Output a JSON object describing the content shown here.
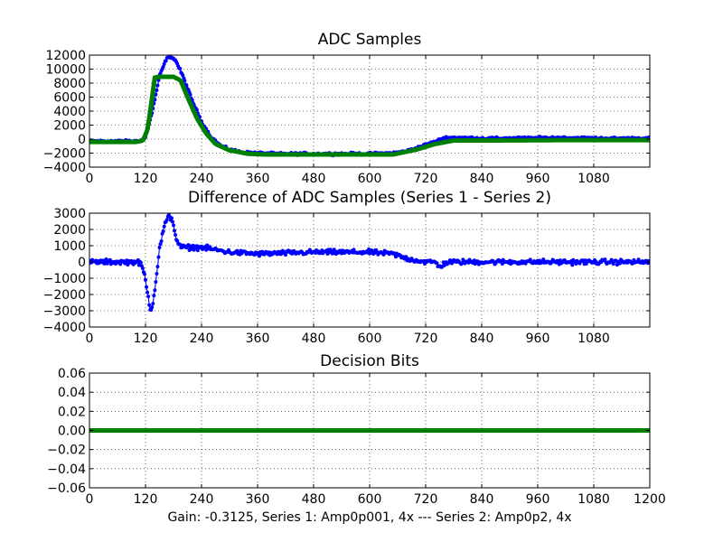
{
  "colors": {
    "series1": "#0000ff",
    "series2": "#008000",
    "axes": "#000000",
    "background": "#ffffff"
  },
  "footer": "Gain: -0.3125, Series 1: Amp0p001, 4x --- Series 2: Amp0p2, 4x",
  "chart_data": [
    {
      "type": "line",
      "title": "ADC Samples",
      "xlabel": "",
      "ylabel": "",
      "xlim": [
        0,
        1200
      ],
      "ylim": [
        -4000,
        12000
      ],
      "xticks": [
        0,
        120,
        240,
        360,
        480,
        600,
        720,
        840,
        960,
        1080
      ],
      "xtick_labels": [
        "0",
        "120",
        "240",
        "360",
        "480",
        "600",
        "720",
        "840",
        "960",
        "1080"
      ],
      "yticks": [
        -4000,
        -2000,
        0,
        2000,
        4000,
        6000,
        8000,
        10000,
        12000
      ],
      "ytick_labels": [
        "−4000",
        "−2000",
        "0",
        "2000",
        "4000",
        "6000",
        "8000",
        "10000",
        "12000"
      ],
      "grid": true,
      "series": [
        {
          "name": "Series 1",
          "color": "#0000ff",
          "style": "line-with-dots",
          "noise": 250,
          "x": [
            0,
            100,
            110,
            120,
            135,
            150,
            165,
            175,
            185,
            200,
            220,
            240,
            260,
            280,
            300,
            330,
            360,
            400,
            500,
            600,
            650,
            680,
            700,
            720,
            740,
            760,
            800,
            840,
            900,
            1000,
            1100,
            1200
          ],
          "y": [
            -300,
            -300,
            -200,
            300,
            4000,
            9000,
            11500,
            11800,
            11200,
            9000,
            5500,
            2500,
            300,
            -900,
            -1500,
            -1900,
            -2000,
            -2100,
            -2100,
            -2100,
            -2000,
            -1700,
            -1300,
            -800,
            -400,
            200,
            200,
            100,
            100,
            200,
            100,
            100
          ]
        },
        {
          "name": "Series 2",
          "color": "#008000",
          "style": "thick-line",
          "noise": 0,
          "x": [
            0,
            100,
            115,
            125,
            140,
            150,
            160,
            180,
            195,
            210,
            230,
            250,
            270,
            300,
            340,
            380,
            500,
            650,
            700,
            740,
            780,
            840,
            1000,
            1200
          ],
          "y": [
            -400,
            -400,
            -200,
            1500,
            8800,
            8900,
            8900,
            8900,
            8400,
            6000,
            3000,
            800,
            -700,
            -1600,
            -2100,
            -2200,
            -2200,
            -2200,
            -1500,
            -700,
            -200,
            -200,
            -150,
            -150
          ]
        }
      ]
    },
    {
      "type": "line",
      "title": "Difference of ADC Samples (Series 1 - Series 2)",
      "xlabel": "",
      "ylabel": "",
      "xlim": [
        0,
        1200
      ],
      "ylim": [
        -4000,
        3000
      ],
      "xticks": [
        0,
        120,
        240,
        360,
        480,
        600,
        720,
        840,
        960,
        1080
      ],
      "xtick_labels": [
        "0",
        "120",
        "240",
        "360",
        "480",
        "600",
        "720",
        "840",
        "960",
        "1080"
      ],
      "yticks": [
        -4000,
        -3000,
        -2000,
        -1000,
        0,
        1000,
        2000,
        3000
      ],
      "ytick_labels": [
        "−4000",
        "−3000",
        "−2000",
        "−1000",
        "0",
        "1000",
        "2000",
        "3000"
      ],
      "grid": true,
      "series": [
        {
          "name": "Series 1 - Series 2",
          "color": "#0000ff",
          "style": "line-with-dots",
          "noise": 220,
          "x": [
            0,
            100,
            110,
            118,
            125,
            130,
            135,
            142,
            150,
            160,
            170,
            178,
            185,
            195,
            205,
            240,
            300,
            360,
            480,
            600,
            650,
            680,
            720,
            740,
            750,
            760,
            770,
            800,
            900,
            1000,
            1100,
            1200
          ],
          "y": [
            0,
            0,
            -100,
            -800,
            -2000,
            -2900,
            -2700,
            -1200,
            800,
            2200,
            2800,
            2600,
            1500,
            900,
            900,
            900,
            600,
            500,
            600,
            600,
            500,
            200,
            0,
            0,
            -300,
            -100,
            0,
            0,
            0,
            0,
            0,
            0
          ]
        }
      ]
    },
    {
      "type": "line",
      "title": "Decision Bits",
      "xlabel": "",
      "ylabel": "",
      "xlim": [
        0,
        1200
      ],
      "ylim": [
        -0.06,
        0.06
      ],
      "xticks": [
        0,
        120,
        240,
        360,
        480,
        600,
        720,
        840,
        960,
        1080,
        1200
      ],
      "xtick_labels": [
        "0",
        "120",
        "240",
        "360",
        "480",
        "600",
        "720",
        "840",
        "960",
        "1080",
        "1200"
      ],
      "yticks": [
        -0.06,
        -0.04,
        -0.02,
        0.0,
        0.02,
        0.04,
        0.06
      ],
      "ytick_labels": [
        "−0.06",
        "−0.04",
        "−0.02",
        "0.00",
        "0.02",
        "0.04",
        "0.06"
      ],
      "grid": true,
      "series": [
        {
          "name": "Decision Bits",
          "color": "#008000",
          "style": "thick-line",
          "noise": 0,
          "x": [
            0,
            1200
          ],
          "y": [
            0,
            0
          ]
        }
      ]
    }
  ]
}
